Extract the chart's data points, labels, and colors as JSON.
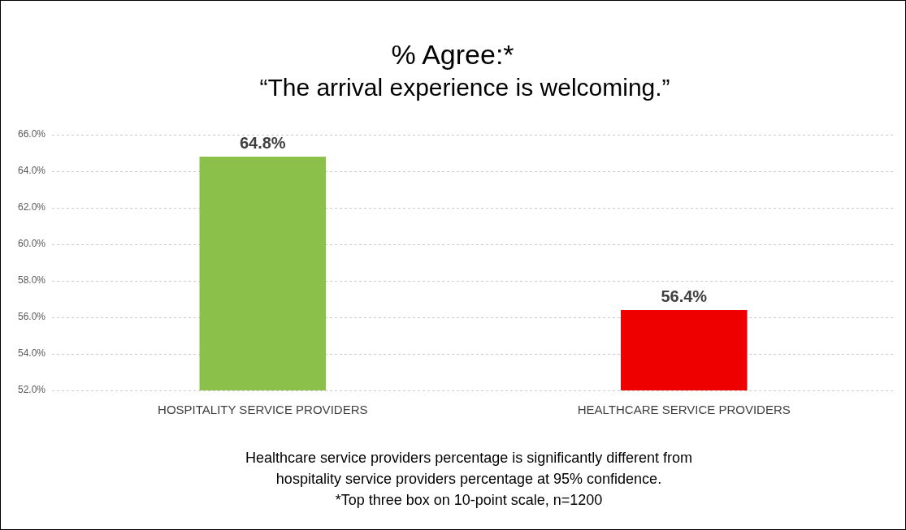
{
  "chart_data": {
    "type": "bar",
    "title": "% Agree:*",
    "subtitle": "“The arrival experience is welcoming.”",
    "categories": [
      "HOSPITALITY SERVICE PROVIDERS",
      "HEALTHCARE SERVICE PROVIDERS"
    ],
    "values": [
      64.8,
      56.4
    ],
    "colors": [
      "#8bc14a",
      "#ee0000"
    ],
    "value_labels": [
      "64.8%",
      "56.4%"
    ],
    "ylim": [
      52,
      66
    ],
    "yticks": [
      {
        "value": 52,
        "label": "52.0%"
      },
      {
        "value": 54,
        "label": "54.0%"
      },
      {
        "value": 56,
        "label": "56.0%"
      },
      {
        "value": 58,
        "label": "58.0%"
      },
      {
        "value": 60,
        "label": "60.0%"
      },
      {
        "value": 62,
        "label": "62.0%"
      },
      {
        "value": 64,
        "label": "64.0%"
      },
      {
        "value": 66,
        "label": "66.0%"
      }
    ],
    "grid": "y",
    "legend": false,
    "annotations": [
      "Healthcare service providers percentage is significantly different from",
      "hospitality service providers percentage at 95% confidence.",
      "*Top three box on 10-point scale, n=1200"
    ]
  }
}
